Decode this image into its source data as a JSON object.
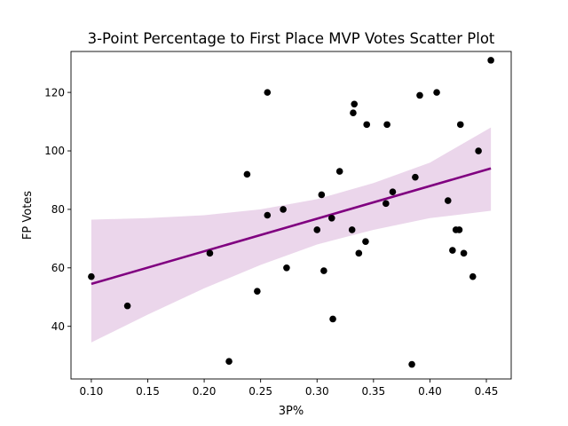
{
  "chart_data": {
    "type": "scatter",
    "title": "3-Point Percentage to First Place MVP Votes Scatter Plot",
    "xlabel": "3P%",
    "ylabel": "FP Votes",
    "xlim": [
      0.082,
      0.472
    ],
    "ylim": [
      22,
      134
    ],
    "x_ticks": [
      "0.10",
      "0.15",
      "0.20",
      "0.25",
      "0.30",
      "0.35",
      "0.40",
      "0.45"
    ],
    "y_ticks": [
      "40",
      "60",
      "80",
      "100",
      "120"
    ],
    "grid": false,
    "colors": {
      "points": "#000000",
      "regression_line": "#800080",
      "confidence_band": "#800080"
    },
    "series": [
      {
        "points": [
          [
            0.1,
            57
          ],
          [
            0.132,
            47
          ],
          [
            0.205,
            65
          ],
          [
            0.222,
            28
          ],
          [
            0.238,
            92
          ],
          [
            0.247,
            52
          ],
          [
            0.256,
            120
          ],
          [
            0.256,
            78
          ],
          [
            0.27,
            80
          ],
          [
            0.273,
            60
          ],
          [
            0.3,
            73
          ],
          [
            0.304,
            85
          ],
          [
            0.306,
            59
          ],
          [
            0.313,
            77
          ],
          [
            0.314,
            42.5
          ],
          [
            0.32,
            93
          ],
          [
            0.331,
            73
          ],
          [
            0.332,
            113
          ],
          [
            0.333,
            116
          ],
          [
            0.337,
            65
          ],
          [
            0.343,
            69
          ],
          [
            0.344,
            109
          ],
          [
            0.361,
            82
          ],
          [
            0.362,
            109
          ],
          [
            0.367,
            86
          ],
          [
            0.384,
            27
          ],
          [
            0.387,
            91
          ],
          [
            0.391,
            119
          ],
          [
            0.406,
            120
          ],
          [
            0.416,
            83
          ],
          [
            0.42,
            66
          ],
          [
            0.423,
            73
          ],
          [
            0.426,
            73
          ],
          [
            0.427,
            109
          ],
          [
            0.43,
            65
          ],
          [
            0.438,
            57
          ],
          [
            0.443,
            100
          ],
          [
            0.454,
            131
          ]
        ]
      }
    ],
    "regression": {
      "x": [
        0.1,
        0.454
      ],
      "y": [
        54.5,
        94.0
      ],
      "ci_x": [
        0.1,
        0.15,
        0.2,
        0.25,
        0.3,
        0.35,
        0.4,
        0.454
      ],
      "ci_upper": [
        76.5,
        77.0,
        78.0,
        80.0,
        83.5,
        89.0,
        96.0,
        108.0
      ],
      "ci_lower": [
        34.5,
        44.0,
        53.0,
        61.0,
        68.0,
        73.0,
        77.0,
        79.5
      ]
    }
  }
}
